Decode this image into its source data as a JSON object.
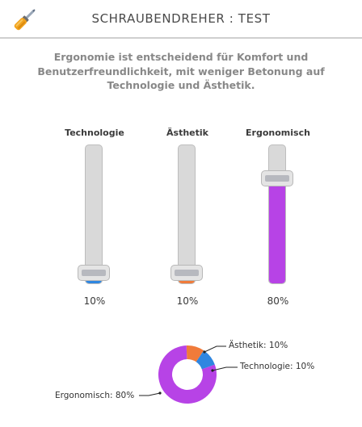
{
  "header": {
    "title": "SCHRAUBENDREHER : TEST",
    "logo_icon": "screwdriver-icon"
  },
  "description": "Ergonomie ist entscheidend für Komfort und Benutzerfreundlichkeit, mit weniger Betonung auf Technologie und Ästhetik.",
  "sliders": [
    {
      "label": "Technologie",
      "value": 10,
      "value_text": "10%",
      "color": "#2f86e0"
    },
    {
      "label": "Ästhetik",
      "value": 10,
      "value_text": "10%",
      "color": "#f07b3a"
    },
    {
      "label": "Ergonomisch",
      "value": 80,
      "value_text": "80%",
      "color": "#b743e6"
    }
  ],
  "chart_data": {
    "type": "pie",
    "categories": [
      "Technologie",
      "Ästhetik",
      "Ergonomisch"
    ],
    "values": [
      10,
      10,
      80
    ],
    "colors": [
      "#2f86e0",
      "#f07b3a",
      "#b743e6"
    ],
    "labels": [
      "Technologie: 10%",
      "Ästhetik: 10%",
      "Ergonomisch: 80%"
    ]
  }
}
